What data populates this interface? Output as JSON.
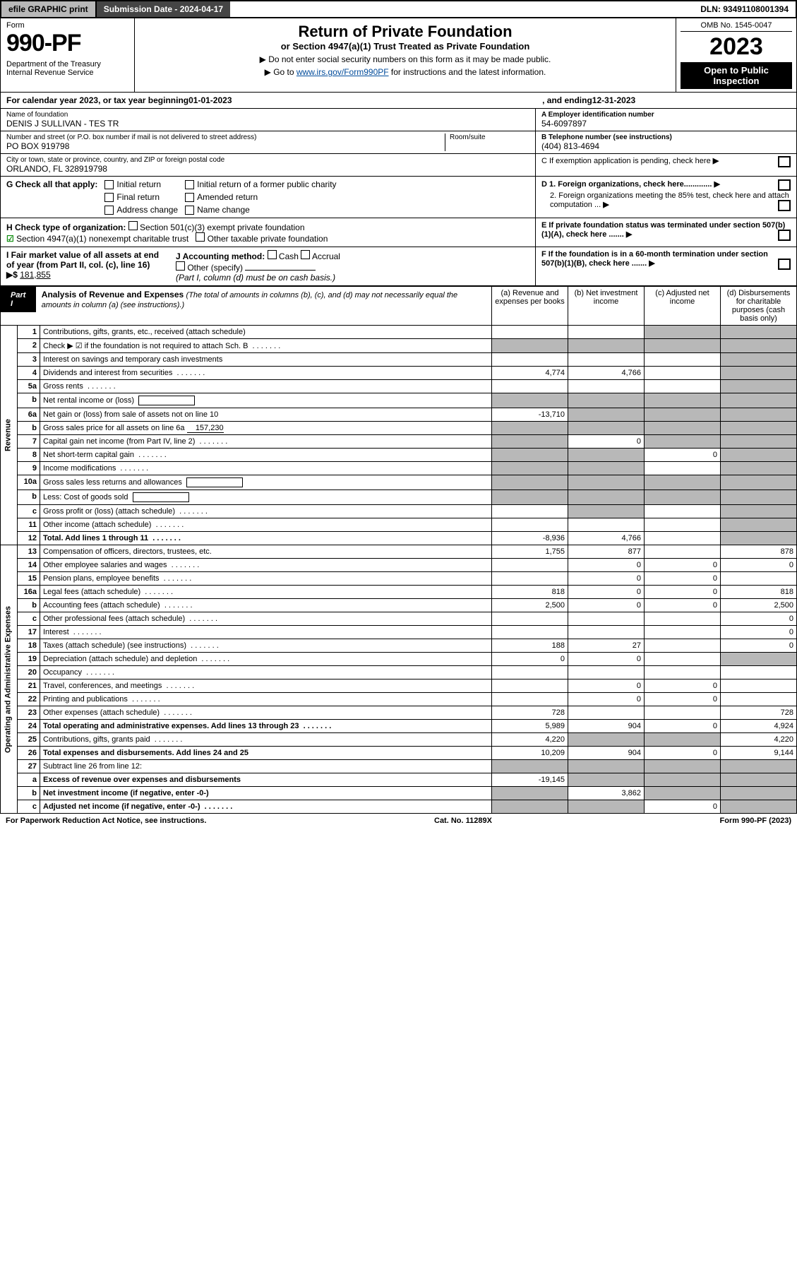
{
  "topbar": {
    "efile": "efile GRAPHIC print",
    "sub_label": "Submission Date - 2024-04-17",
    "dln": "DLN: 93491108001394"
  },
  "header": {
    "form_label": "Form",
    "form_no": "990-PF",
    "dept": "Department of the Treasury\nInternal Revenue Service",
    "title": "Return of Private Foundation",
    "subtitle": "or Section 4947(a)(1) Trust Treated as Private Foundation",
    "instr1": "▶ Do not enter social security numbers on this form as it may be made public.",
    "instr2_pre": "▶ Go to ",
    "instr2_link": "www.irs.gov/Form990PF",
    "instr2_post": " for instructions and the latest information.",
    "omb": "OMB No. 1545-0047",
    "year": "2023",
    "open": "Open to Public Inspection"
  },
  "calendar": {
    "pre": "For calendar year 2023, or tax year beginning ",
    "begin": "01-01-2023",
    "mid": ", and ending ",
    "end": "12-31-2023"
  },
  "foundation": {
    "name_lbl": "Name of foundation",
    "name": "DENIS J SULLIVAN - TES TR",
    "addr_lbl": "Number and street (or P.O. box number if mail is not delivered to street address)",
    "addr": "PO BOX 919798",
    "room_lbl": "Room/suite",
    "city_lbl": "City or town, state or province, country, and ZIP or foreign postal code",
    "city": "ORLANDO, FL  328919798",
    "ein_lbl": "A Employer identification number",
    "ein": "54-6097897",
    "tel_lbl": "B Telephone number (see instructions)",
    "tel": "(404) 813-4694",
    "c_lbl": "C If exemption application is pending, check here",
    "d1_lbl": "D 1. Foreign organizations, check here.............",
    "d2_lbl": "2. Foreign organizations meeting the 85% test, check here and attach computation ...",
    "e_lbl": "E If private foundation status was terminated under section 507(b)(1)(A), check here .......",
    "f_lbl": "F If the foundation is in a 60-month termination under section 507(b)(1)(B), check here .......",
    "g_lbl": "G Check all that apply:",
    "g_opts": [
      "Initial return",
      "Initial return of a former public charity",
      "Final return",
      "Amended return",
      "Address change",
      "Name change"
    ],
    "h_lbl": "H Check type of organization:",
    "h_501": "Section 501(c)(3) exempt private foundation",
    "h_4947": "Section 4947(a)(1) nonexempt charitable trust",
    "h_other": "Other taxable private foundation",
    "i_lbl": "I Fair market value of all assets at end of year (from Part II, col. (c), line 16)",
    "i_val": "181,855",
    "j_lbl": "J Accounting method:",
    "j_cash": "Cash",
    "j_accrual": "Accrual",
    "j_other": "Other (specify)",
    "j_note": "(Part I, column (d) must be on cash basis.)"
  },
  "part1": {
    "tag": "Part I",
    "title": "Analysis of Revenue and Expenses",
    "note": "(The total of amounts in columns (b), (c), and (d) may not necessarily equal the amounts in column (a) (see instructions).)",
    "col_a": "(a) Revenue and expenses per books",
    "col_b": "(b) Net investment income",
    "col_c": "(c) Adjusted net income",
    "col_d": "(d) Disbursements for charitable purposes (cash basis only)",
    "side_rev": "Revenue",
    "side_exp": "Operating and Administrative Expenses"
  },
  "rows": [
    {
      "n": "1",
      "d": "Contributions, gifts, grants, etc., received (attach schedule)",
      "a": "",
      "b": "",
      "c": "g",
      "dd": "g"
    },
    {
      "n": "2",
      "d": "Check ▶ ☑ if the foundation is not required to attach Sch. B",
      "dots": true,
      "a": "g",
      "b": "g",
      "c": "g",
      "dd": "g"
    },
    {
      "n": "3",
      "d": "Interest on savings and temporary cash investments",
      "a": "",
      "b": "",
      "c": "",
      "dd": "g"
    },
    {
      "n": "4",
      "d": "Dividends and interest from securities",
      "dots": true,
      "a": "4,774",
      "b": "4,766",
      "c": "",
      "dd": "g"
    },
    {
      "n": "5a",
      "d": "Gross rents",
      "dots": true,
      "a": "",
      "b": "",
      "c": "",
      "dd": "g"
    },
    {
      "n": "b",
      "d": "Net rental income or (loss)",
      "box": true,
      "a": "g",
      "b": "g",
      "c": "g",
      "dd": "g"
    },
    {
      "n": "6a",
      "d": "Net gain or (loss) from sale of assets not on line 10",
      "a": "-13,710",
      "b": "g",
      "c": "g",
      "dd": "g"
    },
    {
      "n": "b",
      "d": "Gross sales price for all assets on line 6a",
      "inline": "157,230",
      "a": "g",
      "b": "g",
      "c": "g",
      "dd": "g"
    },
    {
      "n": "7",
      "d": "Capital gain net income (from Part IV, line 2)",
      "dots": true,
      "a": "g",
      "b": "0",
      "c": "g",
      "dd": "g"
    },
    {
      "n": "8",
      "d": "Net short-term capital gain",
      "dots": true,
      "a": "g",
      "b": "g",
      "c": "0",
      "dd": "g"
    },
    {
      "n": "9",
      "d": "Income modifications",
      "dots": true,
      "a": "g",
      "b": "g",
      "c": "",
      "dd": "g"
    },
    {
      "n": "10a",
      "d": "Gross sales less returns and allowances",
      "box": true,
      "a": "g",
      "b": "g",
      "c": "g",
      "dd": "g"
    },
    {
      "n": "b",
      "d": "Less: Cost of goods sold",
      "dots": true,
      "box": true,
      "a": "g",
      "b": "g",
      "c": "g",
      "dd": "g"
    },
    {
      "n": "c",
      "d": "Gross profit or (loss) (attach schedule)",
      "dots": true,
      "a": "",
      "b": "g",
      "c": "",
      "dd": "g"
    },
    {
      "n": "11",
      "d": "Other income (attach schedule)",
      "dots": true,
      "a": "",
      "b": "",
      "c": "",
      "dd": "g"
    },
    {
      "n": "12",
      "d": "Total. Add lines 1 through 11",
      "dots": true,
      "bold": true,
      "a": "-8,936",
      "b": "4,766",
      "c": "",
      "dd": "g"
    },
    {
      "n": "13",
      "d": "Compensation of officers, directors, trustees, etc.",
      "a": "1,755",
      "b": "877",
      "c": "",
      "dd": "878"
    },
    {
      "n": "14",
      "d": "Other employee salaries and wages",
      "dots": true,
      "a": "",
      "b": "0",
      "c": "0",
      "dd": "0"
    },
    {
      "n": "15",
      "d": "Pension plans, employee benefits",
      "dots": true,
      "a": "",
      "b": "0",
      "c": "0",
      "dd": ""
    },
    {
      "n": "16a",
      "d": "Legal fees (attach schedule)",
      "dots": true,
      "a": "818",
      "b": "0",
      "c": "0",
      "dd": "818"
    },
    {
      "n": "b",
      "d": "Accounting fees (attach schedule)",
      "dots": true,
      "a": "2,500",
      "b": "0",
      "c": "0",
      "dd": "2,500"
    },
    {
      "n": "c",
      "d": "Other professional fees (attach schedule)",
      "dots": true,
      "a": "",
      "b": "",
      "c": "",
      "dd": "0"
    },
    {
      "n": "17",
      "d": "Interest",
      "dots": true,
      "a": "",
      "b": "",
      "c": "",
      "dd": "0"
    },
    {
      "n": "18",
      "d": "Taxes (attach schedule) (see instructions)",
      "dots": true,
      "a": "188",
      "b": "27",
      "c": "",
      "dd": "0"
    },
    {
      "n": "19",
      "d": "Depreciation (attach schedule) and depletion",
      "dots": true,
      "a": "0",
      "b": "0",
      "c": "",
      "dd": "g"
    },
    {
      "n": "20",
      "d": "Occupancy",
      "dots": true,
      "a": "",
      "b": "",
      "c": "",
      "dd": ""
    },
    {
      "n": "21",
      "d": "Travel, conferences, and meetings",
      "dots": true,
      "a": "",
      "b": "0",
      "c": "0",
      "dd": ""
    },
    {
      "n": "22",
      "d": "Printing and publications",
      "dots": true,
      "a": "",
      "b": "0",
      "c": "0",
      "dd": ""
    },
    {
      "n": "23",
      "d": "Other expenses (attach schedule)",
      "dots": true,
      "a": "728",
      "b": "",
      "c": "",
      "dd": "728"
    },
    {
      "n": "24",
      "d": "Total operating and administrative expenses. Add lines 13 through 23",
      "dots": true,
      "bold": true,
      "a": "5,989",
      "b": "904",
      "c": "0",
      "dd": "4,924"
    },
    {
      "n": "25",
      "d": "Contributions, gifts, grants paid",
      "dots": true,
      "a": "4,220",
      "b": "g",
      "c": "g",
      "dd": "4,220"
    },
    {
      "n": "26",
      "d": "Total expenses and disbursements. Add lines 24 and 25",
      "bold": true,
      "a": "10,209",
      "b": "904",
      "c": "0",
      "dd": "9,144"
    },
    {
      "n": "27",
      "d": "Subtract line 26 from line 12:",
      "a": "g",
      "b": "g",
      "c": "g",
      "dd": "g"
    },
    {
      "n": "a",
      "d": "Excess of revenue over expenses and disbursements",
      "bold": true,
      "a": "-19,145",
      "b": "g",
      "c": "g",
      "dd": "g"
    },
    {
      "n": "b",
      "d": "Net investment income (if negative, enter -0-)",
      "bold": true,
      "a": "g",
      "b": "3,862",
      "c": "g",
      "dd": "g"
    },
    {
      "n": "c",
      "d": "Adjusted net income (if negative, enter -0-)",
      "dots": true,
      "bold": true,
      "a": "g",
      "b": "g",
      "c": "0",
      "dd": "g"
    }
  ],
  "footer": {
    "left": "For Paperwork Reduction Act Notice, see instructions.",
    "mid": "Cat. No. 11289X",
    "right": "Form 990-PF (2023)"
  }
}
